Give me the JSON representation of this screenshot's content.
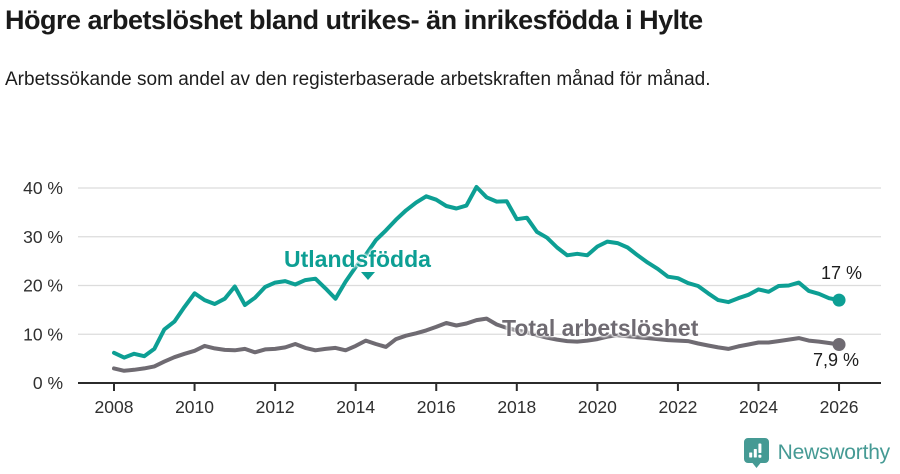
{
  "header": {
    "title": "Högre arbetslöshet bland utrikes- än inrikesfödda i Hylte",
    "subtitle": "Arbetssökande som andel av den registerbaserade arbetskraften månad för månad."
  },
  "colors": {
    "foreign_born_line": "#0d9f94",
    "total_line": "#6f6b72",
    "gridline": "#dcdcdc",
    "axis_line": "#2b2b2b",
    "axis_text": "#2f2f2f",
    "annotation_text": "#1d1d1d",
    "logo_teal": "#459a94"
  },
  "chart_data": {
    "type": "line",
    "title": "Högre arbetslöshet bland utrikes- än inrikesfödda i Hylte",
    "subtitle": "Arbetssökande som andel av den registerbaserade arbetskraften månad för månad.",
    "grid": true,
    "legend": "inline-labels",
    "x_start": 2008,
    "x_step_years": 0.25,
    "x_end": 2026,
    "x_axis": {
      "ticks": [
        2008,
        2010,
        2012,
        2014,
        2016,
        2018,
        2020,
        2022,
        2024,
        2026
      ],
      "tick_labels": [
        "2008",
        "2010",
        "2012",
        "2014",
        "2016",
        "2018",
        "2020",
        "2022",
        "2024",
        "2026"
      ]
    },
    "y_axis": {
      "ticks": [
        0,
        10,
        20,
        30,
        40
      ],
      "tick_labels": [
        "0 %",
        "10 %",
        "20 %",
        "30 %",
        "40 %"
      ],
      "range": [
        0,
        42
      ],
      "unit": "%"
    },
    "series": [
      {
        "name": "Utlandsfödda",
        "color": "#0d9f94",
        "end_label": "17 %",
        "end_value": 17,
        "values": [
          6.2,
          5.2,
          6.0,
          5.5,
          7.0,
          11.0,
          12.6,
          15.6,
          18.4,
          17.0,
          16.2,
          17.3,
          19.8,
          16.0,
          17.5,
          19.7,
          20.6,
          20.9,
          20.2,
          21.1,
          21.4,
          19.4,
          17.3,
          20.8,
          23.8,
          26.3,
          29.3,
          31.3,
          33.5,
          35.4,
          37.0,
          38.3,
          37.6,
          36.3,
          35.8,
          36.4,
          40.2,
          38.1,
          37.2,
          37.3,
          33.6,
          33.9,
          31.0,
          29.8,
          27.8,
          26.2,
          26.5,
          26.2,
          28.0,
          29.0,
          28.7,
          27.8,
          26.2,
          24.7,
          23.4,
          21.8,
          21.5,
          20.5,
          19.9,
          18.4,
          17.0,
          16.6,
          17.4,
          18.1,
          19.2,
          18.7,
          19.9,
          20.0,
          20.6,
          18.9,
          18.3,
          17.4,
          17.0
        ]
      },
      {
        "name": "Total arbetslöshet",
        "color": "#6f6b72",
        "end_label": "7,9 %",
        "end_value": 7.9,
        "values": [
          3.0,
          2.5,
          2.7,
          3.0,
          3.4,
          4.4,
          5.3,
          6.0,
          6.6,
          7.6,
          7.1,
          6.8,
          6.7,
          7.0,
          6.3,
          6.9,
          7.0,
          7.3,
          8.0,
          7.2,
          6.7,
          7.0,
          7.2,
          6.7,
          7.6,
          8.7,
          8.0,
          7.4,
          9.0,
          9.7,
          10.2,
          10.8,
          11.5,
          12.3,
          11.8,
          12.2,
          12.9,
          13.2,
          12.0,
          11.3,
          10.8,
          10.4,
          9.8,
          9.3,
          8.9,
          8.6,
          8.5,
          8.7,
          9.0,
          9.5,
          9.8,
          9.6,
          9.4,
          9.2,
          9.0,
          8.8,
          8.7,
          8.6,
          8.1,
          7.7,
          7.3,
          7.0,
          7.5,
          7.9,
          8.3,
          8.3,
          8.6,
          8.9,
          9.2,
          8.7,
          8.5,
          8.2,
          7.9
        ]
      }
    ]
  },
  "footer": {
    "brand": "Newsworthy"
  }
}
